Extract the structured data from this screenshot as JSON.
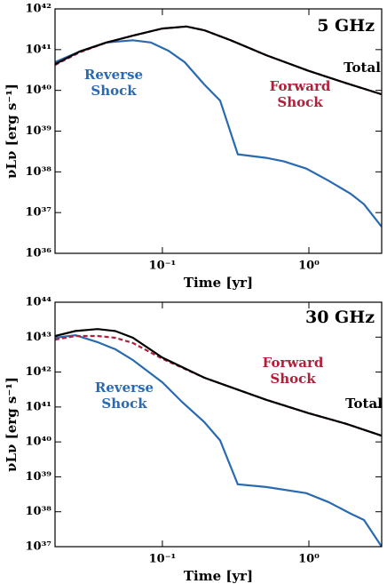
{
  "chart_data": [
    {
      "type": "line",
      "title": "5 GHz",
      "xlabel": "Time [yr]",
      "ylabel": "νLν [erg s⁻¹]",
      "xscale": "log",
      "yscale": "log",
      "xlim": [
        0.0185,
        3.14
      ],
      "ylim": [
        1e+36,
        1e+42
      ],
      "xticks": [
        {
          "value": 0.1,
          "label": "10⁻¹"
        },
        {
          "value": 1,
          "label": "10⁰"
        }
      ],
      "yticks": [
        {
          "value": 1e+36,
          "label": "10³⁶"
        },
        {
          "value": 1e+37,
          "label": "10³⁷"
        },
        {
          "value": 1e+38,
          "label": "10³⁸"
        },
        {
          "value": 1e+39,
          "label": "10³⁹"
        },
        {
          "value": 1e+40,
          "label": "10⁴⁰"
        },
        {
          "value": 1e+41,
          "label": "10⁴¹"
        },
        {
          "value": 1e+42,
          "label": "10⁴²"
        }
      ],
      "series": [
        {
          "name": "Reverse Shock",
          "color": "#2a6ab0",
          "style": "solid",
          "x": [
            0.0185,
            0.0273,
            0.0415,
            0.063,
            0.0834,
            0.11,
            0.142,
            0.193,
            0.248,
            0.327,
            0.512,
            0.676,
            0.96,
            1.36,
            1.93,
            2.38,
            3.14
          ],
          "values": [
            4.9e+40,
            9e+40,
            1.5e+41,
            1.7e+41,
            1.5e+41,
            9.4e+40,
            4.9e+40,
            1.4e+40,
            5.6e+39,
            2.7e+38,
            2.2e+38,
            1.8e+38,
            1.2e+38,
            6.1e+37,
            2.9e+37,
            1.6e+37,
            4.5e+36
          ]
        },
        {
          "name": "Forward Shock",
          "color": "#b0203a",
          "style": "dashed",
          "x": [
            0.0185,
            0.0273,
            0.0415,
            0.063,
            0.1,
            0.146,
            0.193,
            0.293,
            0.512,
            1,
            1.8,
            3.14
          ],
          "values": [
            4.2e+40,
            8.6e+40,
            1.5e+41,
            2.2e+41,
            3.3e+41,
            3.7e+41,
            3e+41,
            1.7e+41,
            7.3e+40,
            3e+40,
            1.5e+40,
            8e+39
          ]
        },
        {
          "name": "Total",
          "color": "#000000",
          "style": "solid",
          "x": [
            0.0185,
            0.0273,
            0.0415,
            0.063,
            0.1,
            0.146,
            0.193,
            0.293,
            0.512,
            1,
            1.8,
            3.14
          ],
          "values": [
            4.4e+40,
            9e+40,
            1.5e+41,
            2.2e+41,
            3.3e+41,
            3.7e+41,
            3e+41,
            1.7e+41,
            7.3e+40,
            3e+40,
            1.5e+40,
            8e+39
          ]
        }
      ]
    },
    {
      "type": "line",
      "title": "30 GHz",
      "xlabel": "Time [yr]",
      "ylabel": "νLν [erg s⁻¹]",
      "xscale": "log",
      "yscale": "log",
      "xlim": [
        0.0185,
        3.14
      ],
      "ylim": [
        1e+37,
        1e+44
      ],
      "xticks": [
        {
          "value": 0.1,
          "label": "10⁻¹"
        },
        {
          "value": 1,
          "label": "10⁰"
        }
      ],
      "yticks": [
        {
          "value": 1e+37,
          "label": "10³⁷"
        },
        {
          "value": 1e+38,
          "label": "10³⁸"
        },
        {
          "value": 1e+39,
          "label": "10³⁹"
        },
        {
          "value": 1e+40,
          "label": "10⁴⁰"
        },
        {
          "value": 1e+41,
          "label": "10⁴¹"
        },
        {
          "value": 1e+42,
          "label": "10⁴²"
        },
        {
          "value": 1e+43,
          "label": "10⁴³"
        },
        {
          "value": 1e+44,
          "label": "10⁴⁴"
        }
      ],
      "series": [
        {
          "name": "Reverse Shock",
          "color": "#2a6ab0",
          "style": "solid",
          "x": [
            0.0185,
            0.0255,
            0.0361,
            0.0477,
            0.063,
            0.1,
            0.136,
            0.193,
            0.248,
            0.327,
            0.512,
            0.96,
            1.36,
            1.93,
            2.38,
            3.14
          ],
          "values": [
            9.6e+42,
            1.14e+43,
            7.2e+42,
            4.5e+42,
            2.2e+42,
            5.1e+41,
            1.4e+41,
            3.7e+40,
            1.1e+40,
            6.1e+38,
            5.1e+38,
            3.4e+38,
            1.9e+38,
            8.8e+37,
            5.8e+37,
            1e+37
          ]
        },
        {
          "name": "Forward Shock",
          "color": "#b0203a",
          "style": "dashed",
          "x": [
            0.0185,
            0.0255,
            0.0361,
            0.0477,
            0.063,
            0.1,
            0.193,
            0.512,
            1,
            1.8,
            3.14
          ],
          "values": [
            8.5e+42,
            1.08e+43,
            1.08e+43,
            9.6e+42,
            6.8e+42,
            2.4e+42,
            6.9e+41,
            1.6e+41,
            6.6e+40,
            3.3e+40,
            1.5e+40
          ]
        },
        {
          "name": "Total",
          "color": "#000000",
          "style": "solid",
          "x": [
            0.0185,
            0.0255,
            0.0361,
            0.0477,
            0.063,
            0.1,
            0.193,
            0.512,
            1,
            1.8,
            3.14
          ],
          "values": [
            1.08e+43,
            1.5e+43,
            1.7e+43,
            1.5e+43,
            9.6e+42,
            2.6e+42,
            6.9e+41,
            1.6e+41,
            6.6e+40,
            3.3e+40,
            1.5e+40
          ]
        }
      ]
    }
  ]
}
